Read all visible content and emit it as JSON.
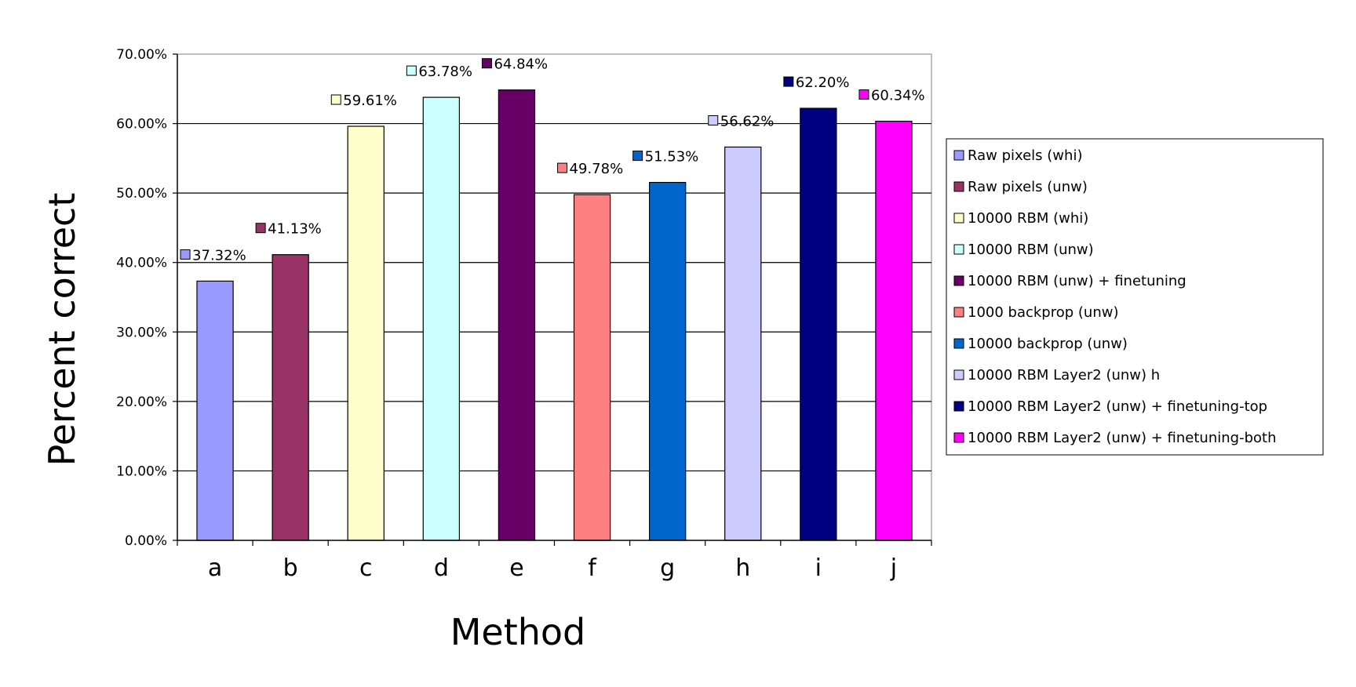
{
  "chart_data": {
    "type": "bar",
    "categories": [
      "a",
      "b",
      "c",
      "d",
      "e",
      "f",
      "g",
      "h",
      "i",
      "j"
    ],
    "values": [
      37.32,
      41.13,
      59.61,
      63.78,
      64.84,
      49.78,
      51.53,
      56.62,
      62.2,
      60.34
    ],
    "value_labels": [
      "37.32%",
      "41.13%",
      "59.61%",
      "63.78%",
      "64.84%",
      "49.78%",
      "51.53%",
      "56.62%",
      "62.20%",
      "60.34%"
    ],
    "colors": [
      "#9999ff",
      "#993366",
      "#ffffcc",
      "#ccffff",
      "#660066",
      "#ff8080",
      "#0066cc",
      "#ccccff",
      "#000080",
      "#ff00ff"
    ],
    "series_names": [
      "Raw pixels (whi)",
      "Raw pixels (unw)",
      "10000 RBM (whi)",
      "10000 RBM (unw)",
      "10000 RBM (unw) + finetuning",
      "1000 backprop (unw)",
      "10000 backprop (unw)",
      "10000 RBM Layer2 (unw) h",
      "10000 RBM Layer2 (unw) + finetuning-top",
      "10000 RBM Layer2 (unw) + finetuning-both"
    ],
    "xlabel": "Method",
    "ylabel": "Percent correct",
    "ylim": [
      0,
      70
    ],
    "y_ticks": [
      "0.00%",
      "10.00%",
      "20.00%",
      "30.00%",
      "40.00%",
      "50.00%",
      "60.00%",
      "70.00%"
    ],
    "grid": true,
    "legend_position": "right"
  }
}
